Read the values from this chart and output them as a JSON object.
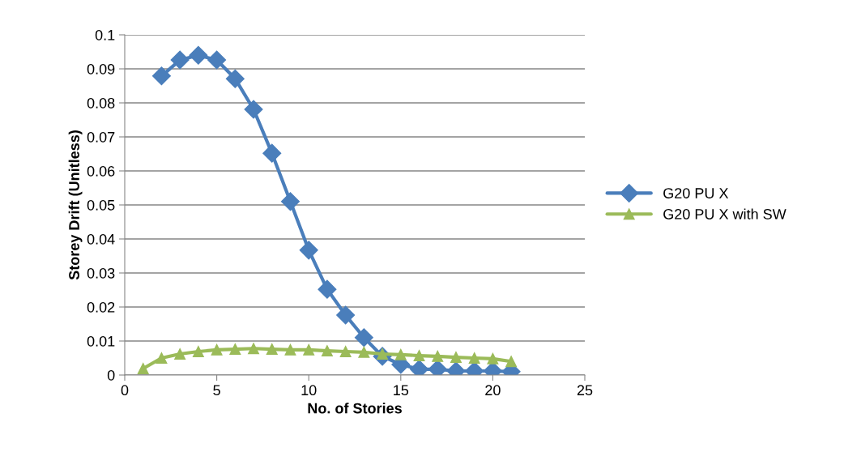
{
  "chart_data": {
    "type": "line",
    "xlabel": "No. of Stories",
    "ylabel": "Storey Drift (Unitless)",
    "xlim": [
      0,
      25
    ],
    "xticks": [
      0,
      5,
      10,
      15,
      20,
      25
    ],
    "ylim": [
      0,
      0.1
    ],
    "yticks": [
      0,
      0.01,
      0.02,
      0.03,
      0.04,
      0.05,
      0.06,
      0.07,
      0.08,
      0.09,
      0.1
    ],
    "grid": "y",
    "legend": "right",
    "series": [
      {
        "name": "G20 PU X",
        "color": "#4a7ebb",
        "marker": "diamond",
        "x": [
          2,
          3,
          4,
          5,
          6,
          7,
          8,
          9,
          10,
          11,
          12,
          13,
          14,
          15,
          16,
          17,
          18,
          19,
          20,
          21
        ],
        "values": [
          0.0879,
          0.0926,
          0.094,
          0.0926,
          0.0871,
          0.0781,
          0.0652,
          0.051,
          0.0367,
          0.0252,
          0.0176,
          0.011,
          0.0055,
          0.0031,
          0.0017,
          0.0017,
          0.0012,
          0.0012,
          0.0012,
          0.001
        ]
      },
      {
        "name": "G20 PU X with SW",
        "color": "#9bbb59",
        "marker": "triangle",
        "x": [
          1,
          2,
          3,
          4,
          5,
          6,
          7,
          8,
          9,
          10,
          11,
          12,
          13,
          14,
          15,
          16,
          17,
          18,
          19,
          20,
          21
        ],
        "values": [
          0.0019,
          0.005,
          0.0062,
          0.0069,
          0.0074,
          0.0076,
          0.0078,
          0.0076,
          0.0074,
          0.0074,
          0.0071,
          0.0069,
          0.0067,
          0.0062,
          0.006,
          0.0057,
          0.0055,
          0.0052,
          0.005,
          0.0048,
          0.004
        ]
      }
    ]
  }
}
